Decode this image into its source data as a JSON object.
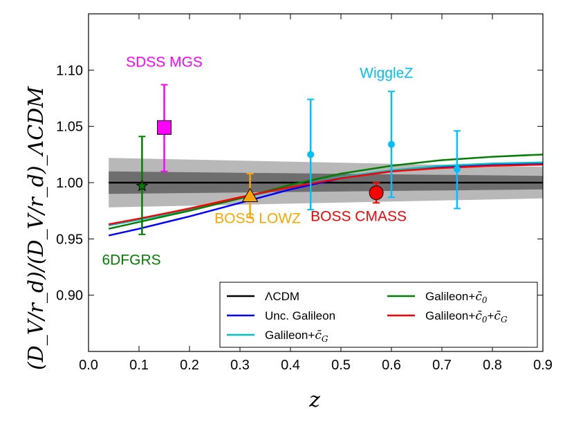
{
  "chart_data": {
    "type": "line",
    "title": "",
    "xlabel": "z",
    "ylabel": "(D_V/r_d)/(D_V/r_d)_ΛCDM",
    "xlim": [
      0.0,
      0.9
    ],
    "ylim": [
      0.85,
      1.15
    ],
    "x_ticks": [
      0.0,
      0.1,
      0.2,
      0.3,
      0.4,
      0.5,
      0.6,
      0.7,
      0.8,
      0.9
    ],
    "x_tick_labels": [
      "0.0",
      "0.1",
      "0.2",
      "0.3",
      "0.4",
      "0.5",
      "0.6",
      "0.7",
      "0.8",
      "0.9"
    ],
    "y_ticks": [
      0.9,
      0.95,
      1.0,
      1.05,
      1.1
    ],
    "y_tick_labels": [
      "0.90",
      "0.95",
      "1.00",
      "1.05",
      "1.10"
    ],
    "bands": [
      {
        "name": "outer band",
        "color": "#b8b8b8",
        "x": [
          0.04,
          0.9
        ],
        "lower": [
          0.978,
          0.986
        ],
        "upper": [
          1.022,
          1.014
        ]
      },
      {
        "name": "inner band",
        "color": "#6e6e6e",
        "x": [
          0.04,
          0.9
        ],
        "lower": [
          0.99,
          0.994
        ],
        "upper": [
          1.01,
          1.006
        ]
      }
    ],
    "series": [
      {
        "name": "ΛCDM",
        "legend_label": "ΛCDM",
        "color": "#000000",
        "x": [
          0.04,
          0.9
        ],
        "y": [
          1.0,
          1.0
        ]
      },
      {
        "name": "Unc. Galileon",
        "legend_label": "Unc. Galileon",
        "color": "#0000ff",
        "x": [
          0.04,
          0.1,
          0.2,
          0.3,
          0.4,
          0.5,
          0.6,
          0.7,
          0.8,
          0.9
        ],
        "y": [
          0.953,
          0.959,
          0.97,
          0.982,
          0.994,
          1.004,
          1.01,
          1.014,
          1.016,
          1.017
        ]
      },
      {
        "name": "Galileon+c_G",
        "legend_label": "Galileon+",
        "legend_sub": "G",
        "color": "#00bfbf",
        "x": [
          0.04,
          0.1,
          0.2,
          0.3,
          0.4,
          0.5,
          0.6,
          0.7,
          0.8,
          0.9
        ],
        "y": [
          0.962,
          0.967,
          0.976,
          0.986,
          0.996,
          1.005,
          1.011,
          1.015,
          1.017,
          1.018
        ]
      },
      {
        "name": "Galileon+c_0",
        "legend_label": "Galileon+",
        "legend_sub": "0",
        "color": "#007f00",
        "x": [
          0.04,
          0.1,
          0.2,
          0.3,
          0.4,
          0.5,
          0.6,
          0.7,
          0.8,
          0.9
        ],
        "y": [
          0.959,
          0.965,
          0.975,
          0.986,
          0.998,
          1.008,
          1.015,
          1.02,
          1.023,
          1.025
        ]
      },
      {
        "name": "Galileon+c_0+c_G",
        "legend_label": "Galileon+",
        "legend_sub": "0",
        "legend_label2": "+",
        "legend_sub2": "G",
        "color": "#ff0000",
        "x": [
          0.04,
          0.1,
          0.2,
          0.3,
          0.4,
          0.5,
          0.6,
          0.7,
          0.8,
          0.9
        ],
        "y": [
          0.963,
          0.968,
          0.977,
          0.987,
          0.996,
          1.004,
          1.01,
          1.013,
          1.015,
          1.016
        ]
      }
    ],
    "points": [
      {
        "name": "6DFGRS",
        "x": 0.106,
        "y": 0.997,
        "err_low": 0.043,
        "err_high": 0.044,
        "marker": "star",
        "color": "#007f00",
        "label": "6DFGRS",
        "label_x": 0.085,
        "label_y": 0.927
      },
      {
        "name": "SDSS MGS",
        "x": 0.15,
        "y": 1.049,
        "err_low": 0.039,
        "err_high": 0.038,
        "marker": "square",
        "color": "#ff00ff",
        "label": "SDSS MGS",
        "label_x": 0.15,
        "label_y": 1.103
      },
      {
        "name": "BOSS LOWZ",
        "x": 0.32,
        "y": 0.988,
        "err_low": 0.019,
        "err_high": 0.02,
        "marker": "triangle",
        "color": "#ffa500",
        "label": "BOSS LOWZ",
        "label_x": 0.335,
        "label_y": 0.964
      },
      {
        "name": "WiggleZ z=0.44",
        "x": 0.44,
        "y": 1.025,
        "err_low": 0.049,
        "err_high": 0.049,
        "marker": "circle-small",
        "color": "#00bfff",
        "label": "",
        "label_x": null,
        "label_y": null
      },
      {
        "name": "WiggleZ z=0.60",
        "x": 0.6,
        "y": 1.034,
        "err_low": 0.047,
        "err_high": 0.047,
        "marker": "circle-small",
        "color": "#00bfff",
        "label": "WiggleZ",
        "label_x": 0.59,
        "label_y": 1.093
      },
      {
        "name": "WiggleZ z=0.73",
        "x": 0.73,
        "y": 1.012,
        "err_low": 0.035,
        "err_high": 0.034,
        "marker": "circle-small",
        "color": "#00bfff",
        "label": "",
        "label_x": null,
        "label_y": null
      },
      {
        "name": "BOSS CMASS",
        "x": 0.57,
        "y": 0.991,
        "err_low": 0.009,
        "err_high": 0.009,
        "marker": "circle",
        "color": "#ff0000",
        "label": "BOSS CMASS",
        "label_x": 0.535,
        "label_y": 0.966
      }
    ],
    "legend": {
      "placement": "lower-right",
      "columns": 2,
      "order": [
        "ΛCDM",
        "Unc. Galileon",
        "Galileon+c_G",
        "Galileon+c_0",
        "Galileon+c_0+c_G"
      ]
    },
    "grid": false
  }
}
